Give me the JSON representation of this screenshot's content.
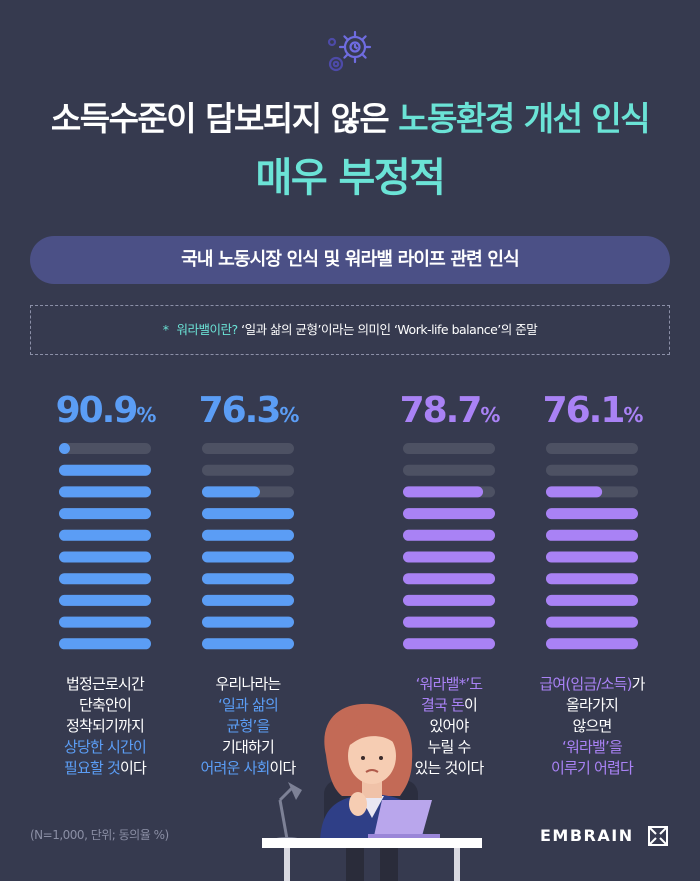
{
  "title": {
    "line1_prefix": "소득수준이 담보되지 않은 ",
    "line1_highlight": "노동환경 개선 인식",
    "line2": "매우 부정적"
  },
  "banner": "국내 노동시장 인식 및 워라밸 라이프 관련 인식",
  "note": {
    "star": "*",
    "highlight": "워라밸이란?",
    "text": " ‘일과 삶의 균형’이라는 의미인 ‘Work-life balance’의 준말"
  },
  "colors": {
    "blue": "#5b9df5",
    "purple": "#a982f5",
    "teal": "#6be3d6",
    "track": "#4d5163"
  },
  "chart_data": {
    "type": "bar",
    "unit": "%",
    "segments_per_bar": 10,
    "series": [
      {
        "value": 90.9,
        "value_label": "90.9",
        "color": "#5b9df5",
        "caption": [
          [
            "법정근로시간",
            ""
          ],
          [
            "단축안이",
            ""
          ],
          [
            "정착되기까지",
            ""
          ],
          [
            "상당한 시간이",
            "b"
          ],
          [
            "필요할 것",
            "b",
            "이다"
          ]
        ]
      },
      {
        "value": 76.3,
        "value_label": "76.3",
        "color": "#5b9df5",
        "caption": [
          [
            "우리나라는",
            ""
          ],
          [
            "‘일과 삶의",
            "b"
          ],
          [
            "균형’을",
            "b"
          ],
          [
            "기대하기",
            ""
          ],
          [
            "어려운 사회",
            "b",
            "이다"
          ]
        ]
      },
      {
        "value": 78.7,
        "value_label": "78.7",
        "color": "#a982f5",
        "caption": [
          [
            "‘워라밸*’도",
            "p"
          ],
          [
            "결국 돈",
            "p",
            "이"
          ],
          [
            "있어야",
            ""
          ],
          [
            "누릴 수",
            ""
          ],
          [
            "있는 것이다",
            ""
          ]
        ]
      },
      {
        "value": 76.1,
        "value_label": "76.1",
        "color": "#a982f5",
        "caption": [
          [
            "급여(임금/소득)",
            "p",
            "가"
          ],
          [
            "올라가지",
            ""
          ],
          [
            "않으면",
            ""
          ],
          [
            "‘워라밸’을",
            "p"
          ],
          [
            "이루기 어렵다",
            "p"
          ]
        ]
      }
    ]
  },
  "footnote": "(N=1,000, 단위; 동의율 %)",
  "brand": "EMBRAIN"
}
